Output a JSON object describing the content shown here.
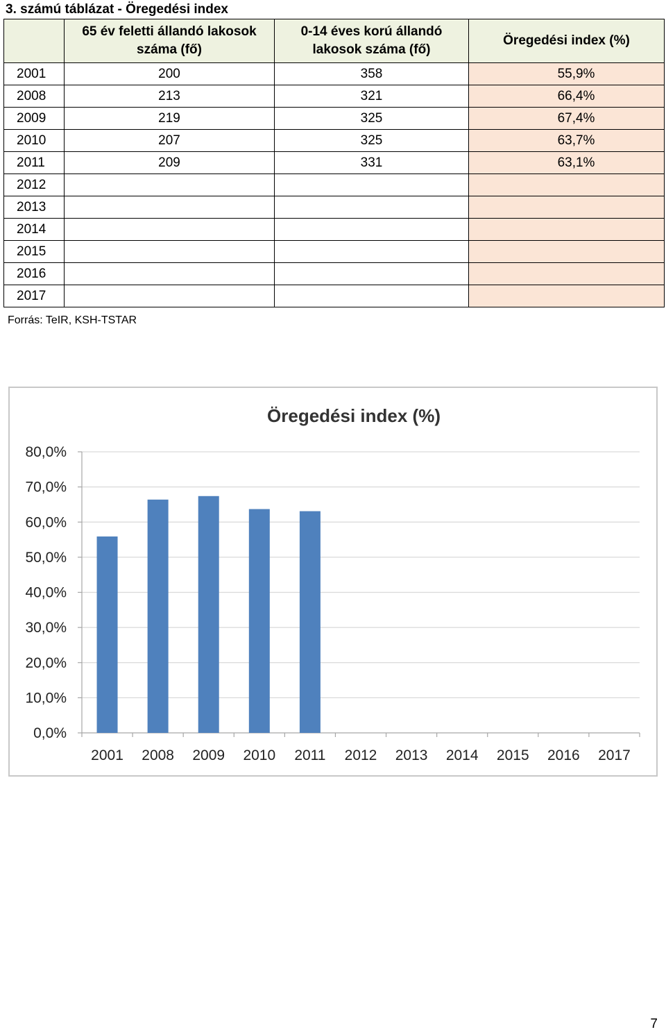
{
  "title": "3. számú táblázat - Öregedési index",
  "table": {
    "headers": {
      "year": "",
      "over65": "65 év feletti állandó lakosok száma (fő)",
      "under14": "0-14 éves korú állandó lakosok száma (fő)",
      "index": "Öregedési index (%)"
    },
    "rows": [
      {
        "year": "2001",
        "over65": "200",
        "under14": "358",
        "index": "55,9%"
      },
      {
        "year": "2008",
        "over65": "213",
        "under14": "321",
        "index": "66,4%"
      },
      {
        "year": "2009",
        "over65": "219",
        "under14": "325",
        "index": "67,4%"
      },
      {
        "year": "2010",
        "over65": "207",
        "under14": "325",
        "index": "63,7%"
      },
      {
        "year": "2011",
        "over65": "209",
        "under14": "331",
        "index": "63,1%"
      },
      {
        "year": "2012",
        "over65": "",
        "under14": "",
        "index": ""
      },
      {
        "year": "2013",
        "over65": "",
        "under14": "",
        "index": ""
      },
      {
        "year": "2014",
        "over65": "",
        "under14": "",
        "index": ""
      },
      {
        "year": "2015",
        "over65": "",
        "under14": "",
        "index": ""
      },
      {
        "year": "2016",
        "over65": "",
        "under14": "",
        "index": ""
      },
      {
        "year": "2017",
        "over65": "",
        "under14": "",
        "index": ""
      }
    ]
  },
  "source": "Forrás: TeIR, KSH-TSTAR",
  "page_number": "7",
  "colors": {
    "bar": "#4f81bd",
    "header_bg": "#eef2e0",
    "index_bg": "#fbe5d6",
    "grid": "#d9d9d9"
  },
  "chart_data": {
    "type": "bar",
    "title": "Öregedési index (%)",
    "categories": [
      "2001",
      "2008",
      "2009",
      "2010",
      "2011",
      "2012",
      "2013",
      "2014",
      "2015",
      "2016",
      "2017"
    ],
    "values": [
      55.9,
      66.4,
      67.4,
      63.7,
      63.1,
      null,
      null,
      null,
      null,
      null,
      null
    ],
    "ylim": [
      0,
      80
    ],
    "yticks": [
      0,
      10,
      20,
      30,
      40,
      50,
      60,
      70,
      80
    ],
    "ytick_labels": [
      "0,0%",
      "10,0%",
      "20,0%",
      "30,0%",
      "40,0%",
      "50,0%",
      "60,0%",
      "70,0%",
      "80,0%"
    ],
    "grid": true,
    "legend": "none"
  }
}
